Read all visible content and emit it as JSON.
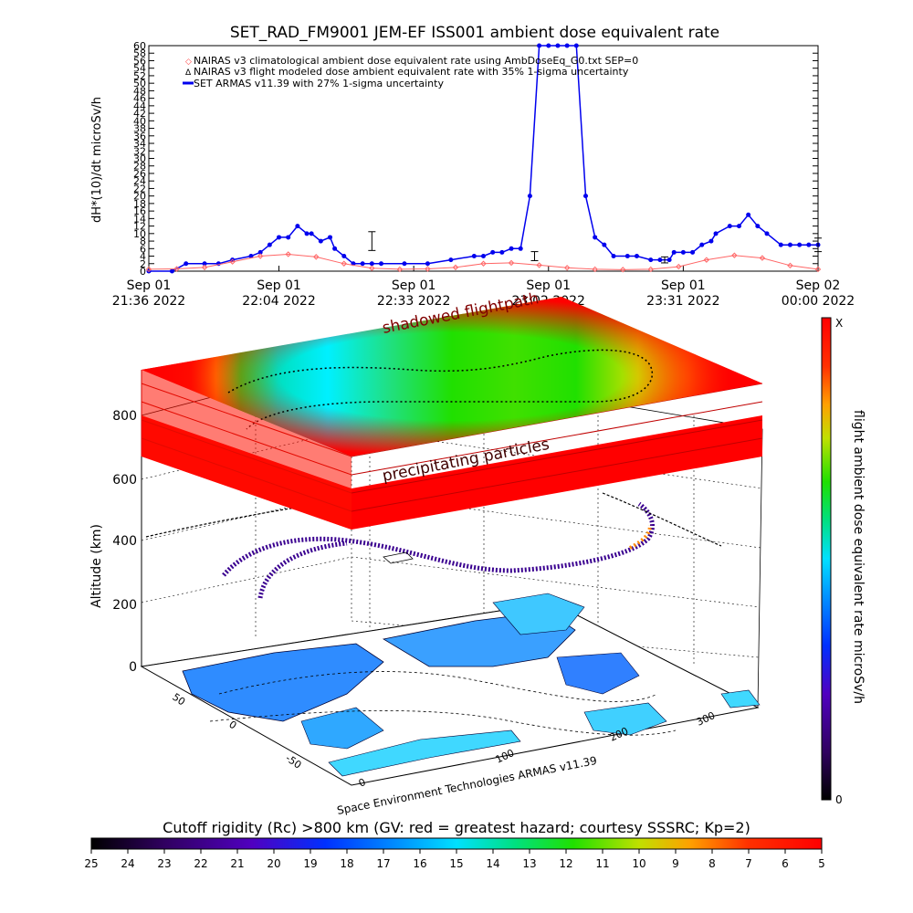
{
  "title": "SET_RAD_FM9001  JEM-EF ISS001 ambient dose equivalent rate",
  "chart_data": [
    {
      "type": "line",
      "ylabel": "dH*(10)/dt microSv/h",
      "ylim": [
        0,
        60
      ],
      "yticks": [
        0,
        2,
        4,
        6,
        8,
        10,
        12,
        14,
        16,
        18,
        20,
        22,
        24,
        26,
        28,
        30,
        32,
        34,
        36,
        38,
        40,
        42,
        44,
        46,
        48,
        50,
        52,
        54,
        56,
        58,
        60
      ],
      "xlim": [
        "2022-09-01 21:36",
        "2022-09-02 00:00"
      ],
      "xticks": [
        {
          "t": 0,
          "line1": "Sep 01",
          "line2": "21:36 2022"
        },
        {
          "t": 28,
          "line1": "Sep 01",
          "line2": "22:04 2022"
        },
        {
          "t": 57,
          "line1": "Sep 01",
          "line2": "22:33 2022"
        },
        {
          "t": 86,
          "line1": "Sep 01",
          "line2": "23:02 2022"
        },
        {
          "t": 115,
          "line1": "Sep 01",
          "line2": "23:31 2022"
        },
        {
          "t": 144,
          "line1": "Sep 02",
          "line2": "00:00 2022"
        }
      ],
      "legend": [
        "NAIRAS v3 climatological ambient dose equivalent rate using AmbDoseEq_G0.txt SEP=0",
        "NAIRAS v3 flight modeled dose ambient equivalent rate with 35% 1-sigma uncertainty",
        "SET ARMAS v11.39 with 27% 1-sigma uncertainty"
      ],
      "series": [
        {
          "name": "SET ARMAS v11.39 with 27% 1-sigma uncertainty",
          "color": "#0000ee",
          "x_minutes": [
            0,
            5,
            8,
            12,
            15,
            18,
            22,
            24,
            26,
            28,
            30,
            32,
            34,
            35,
            37,
            39,
            40,
            42,
            44,
            46,
            48,
            50,
            55,
            60,
            65,
            70,
            72,
            74,
            76,
            78,
            80,
            82,
            84,
            86,
            88,
            90,
            92,
            94,
            96,
            98,
            100,
            103,
            105,
            108,
            110,
            112,
            113,
            115,
            117,
            119,
            121,
            122,
            125,
            127,
            129,
            131,
            133,
            136,
            138,
            140,
            142,
            144
          ],
          "values": [
            0,
            0,
            2,
            2,
            2,
            3,
            4,
            5,
            7,
            9,
            9,
            12,
            10,
            10,
            8,
            9,
            6,
            4,
            2,
            2,
            2,
            2,
            2,
            2,
            3,
            4,
            4,
            5,
            5,
            6,
            6,
            20,
            60,
            60,
            60,
            60,
            60,
            20,
            9,
            7,
            4,
            4,
            4,
            3,
            3,
            3,
            5,
            5,
            5,
            7,
            8,
            10,
            12,
            12,
            15,
            12,
            10,
            7,
            7,
            7,
            7,
            7
          ],
          "error_bars": [
            {
              "x": 48,
              "y": 8,
              "err": 2.5
            },
            {
              "x": 83,
              "y": 4,
              "err": 1.2
            },
            {
              "x": 111,
              "y": 3,
              "err": 0.8
            },
            {
              "x": 144,
              "y": 7,
              "err": 1.8
            }
          ]
        },
        {
          "name": "NAIRAS v3 climatological ambient dose equivalent rate using AmbDoseEq_G0.txt SEP=0",
          "color": "#ff6666",
          "x_minutes": [
            0,
            6,
            12,
            18,
            24,
            30,
            36,
            42,
            48,
            54,
            60,
            66,
            72,
            78,
            84,
            90,
            96,
            102,
            108,
            114,
            120,
            126,
            132,
            138,
            144
          ],
          "values": [
            0.5,
            0.6,
            1,
            2.5,
            4,
            4.5,
            3.8,
            2,
            0.8,
            0.5,
            0.6,
            1,
            2,
            2.2,
            1.6,
            0.9,
            0.5,
            0.4,
            0.5,
            1.2,
            3,
            4.2,
            3.5,
            1.5,
            0.5
          ]
        }
      ]
    },
    {
      "type": "heatmap",
      "ylabel": "Altitude (km)",
      "zticks": [
        "0",
        "200",
        "400",
        "600",
        "800"
      ],
      "floor_lat_ticks": [
        "50",
        "0",
        "-50"
      ],
      "floor_lon_ticks": [
        "0",
        "100",
        "200",
        "300"
      ],
      "labels": {
        "shadowed": "shadowed flightpath",
        "precipitating": "precipitating particles",
        "credit": "Space Environment Technologies ARMAS v11.39"
      },
      "colorbar": {
        "label": "flight ambient dose equivalent rate microSv/h",
        "top": "X",
        "bottom": "0"
      }
    },
    {
      "type": "heatmap",
      "title": "Cutoff rigidity (Rc) >800 km (GV: red = greatest hazard; courtesy SSSRC; Kp=2)",
      "ticks": [
        "25",
        "24",
        "23",
        "22",
        "21",
        "20",
        "19",
        "18",
        "17",
        "16",
        "15",
        "14",
        "13",
        "12",
        "11",
        "10",
        "9",
        "8",
        "7",
        "6",
        "5"
      ]
    }
  ]
}
